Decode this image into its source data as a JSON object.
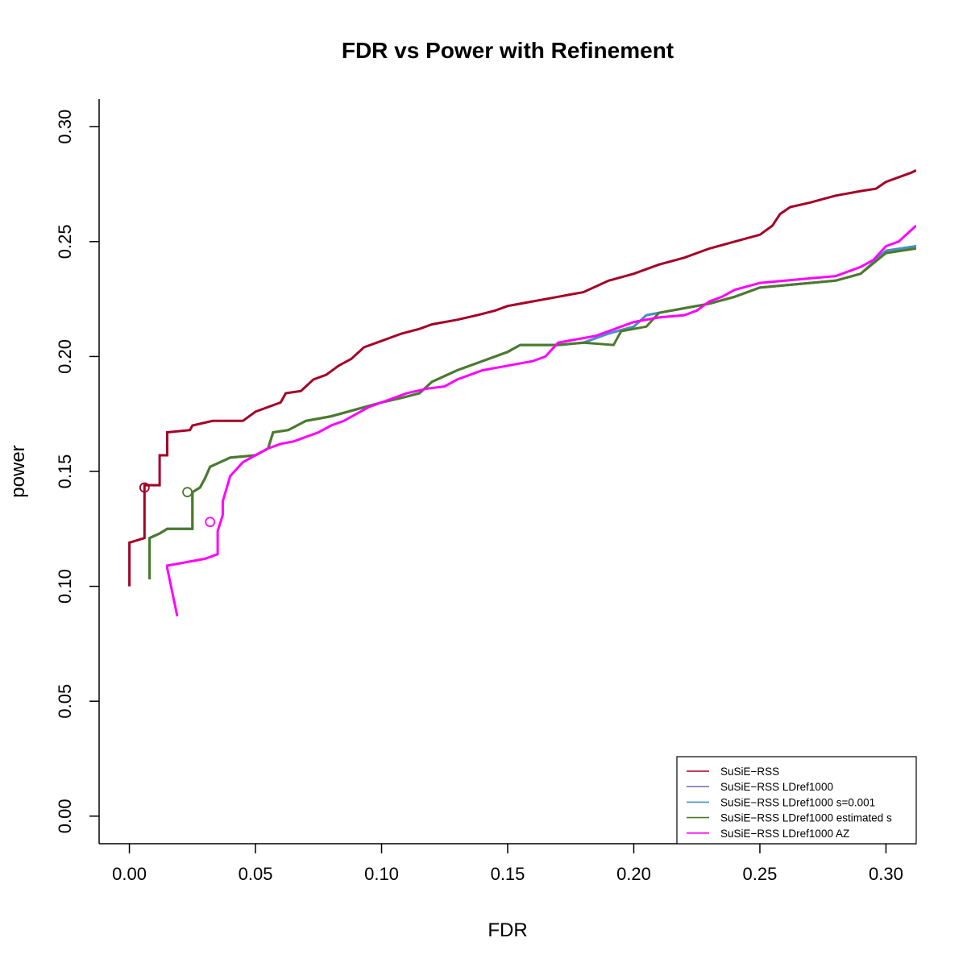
{
  "chart_data": {
    "type": "line",
    "title": "FDR vs Power with Refinement",
    "xlabel": "FDR",
    "ylabel": "power",
    "xlim": [
      -0.012,
      0.312
    ],
    "ylim": [
      -0.012,
      0.312
    ],
    "x_ticks": [
      0.0,
      0.05,
      0.1,
      0.15,
      0.2,
      0.25,
      0.3
    ],
    "x_tick_labels": [
      "0.00",
      "0.05",
      "0.10",
      "0.15",
      "0.20",
      "0.25",
      "0.30"
    ],
    "y_ticks": [
      0.0,
      0.05,
      0.1,
      0.15,
      0.2,
      0.25,
      0.3
    ],
    "y_tick_labels": [
      "0.00",
      "0.05",
      "0.10",
      "0.15",
      "0.20",
      "0.25",
      "0.30"
    ],
    "grid": false,
    "legend_position": "bottom-right",
    "series": [
      {
        "name": "SuSiE−RSS",
        "color": "#a50026",
        "x": [
          0.0,
          0.0,
          0.006,
          0.006,
          0.007,
          0.007,
          0.012,
          0.012,
          0.015,
          0.015,
          0.024,
          0.025,
          0.033,
          0.045,
          0.05,
          0.055,
          0.06,
          0.062,
          0.068,
          0.073,
          0.078,
          0.083,
          0.088,
          0.093,
          0.098,
          0.103,
          0.108,
          0.115,
          0.12,
          0.13,
          0.138,
          0.145,
          0.15,
          0.16,
          0.17,
          0.175,
          0.18,
          0.19,
          0.2,
          0.21,
          0.22,
          0.23,
          0.24,
          0.25,
          0.255,
          0.258,
          0.262,
          0.27,
          0.28,
          0.29,
          0.296,
          0.3,
          0.31,
          0.312
        ],
        "y": [
          0.1,
          0.119,
          0.121,
          0.144,
          0.144,
          0.144,
          0.144,
          0.157,
          0.157,
          0.167,
          0.168,
          0.17,
          0.172,
          0.172,
          0.176,
          0.178,
          0.18,
          0.184,
          0.185,
          0.19,
          0.192,
          0.196,
          0.199,
          0.204,
          0.206,
          0.208,
          0.21,
          0.212,
          0.214,
          0.216,
          0.218,
          0.22,
          0.222,
          0.224,
          0.226,
          0.227,
          0.228,
          0.233,
          0.236,
          0.24,
          0.243,
          0.247,
          0.25,
          0.253,
          0.257,
          0.262,
          0.265,
          0.267,
          0.27,
          0.272,
          0.273,
          0.276,
          0.28,
          0.281
        ]
      },
      {
        "name": "SuSiE−RSS LDref1000",
        "color": "#7e73ad",
        "x": [
          0.008,
          0.008,
          0.012,
          0.015,
          0.025,
          0.025,
          0.028,
          0.03,
          0.032,
          0.04,
          0.05,
          0.055,
          0.057,
          0.063,
          0.07,
          0.08,
          0.09,
          0.1,
          0.108,
          0.115,
          0.12,
          0.13,
          0.14,
          0.15,
          0.155,
          0.16,
          0.17,
          0.18,
          0.19,
          0.2,
          0.205,
          0.21,
          0.22,
          0.23,
          0.24,
          0.25,
          0.26,
          0.27,
          0.28,
          0.29,
          0.3,
          0.312
        ],
        "y": [
          0.103,
          0.121,
          0.123,
          0.125,
          0.125,
          0.141,
          0.143,
          0.147,
          0.152,
          0.156,
          0.157,
          0.16,
          0.167,
          0.168,
          0.172,
          0.174,
          0.177,
          0.18,
          0.182,
          0.184,
          0.189,
          0.194,
          0.198,
          0.202,
          0.205,
          0.205,
          0.205,
          0.206,
          0.21,
          0.213,
          0.218,
          0.219,
          0.221,
          0.223,
          0.226,
          0.23,
          0.231,
          0.232,
          0.233,
          0.236,
          0.246,
          0.248
        ]
      },
      {
        "name": "SuSiE−RSS LDref1000 s=0.001",
        "color": "#4393c3",
        "x": [
          0.008,
          0.008,
          0.012,
          0.015,
          0.025,
          0.025,
          0.028,
          0.03,
          0.032,
          0.04,
          0.05,
          0.055,
          0.057,
          0.063,
          0.07,
          0.08,
          0.09,
          0.1,
          0.108,
          0.115,
          0.12,
          0.13,
          0.14,
          0.15,
          0.155,
          0.16,
          0.17,
          0.18,
          0.19,
          0.2,
          0.205,
          0.21,
          0.22,
          0.23,
          0.24,
          0.25,
          0.26,
          0.27,
          0.28,
          0.29,
          0.3,
          0.312
        ],
        "y": [
          0.103,
          0.121,
          0.123,
          0.125,
          0.125,
          0.141,
          0.143,
          0.147,
          0.152,
          0.156,
          0.157,
          0.16,
          0.167,
          0.168,
          0.172,
          0.174,
          0.177,
          0.18,
          0.182,
          0.184,
          0.189,
          0.194,
          0.198,
          0.202,
          0.205,
          0.205,
          0.205,
          0.206,
          0.21,
          0.213,
          0.218,
          0.219,
          0.221,
          0.223,
          0.226,
          0.23,
          0.231,
          0.232,
          0.233,
          0.236,
          0.246,
          0.248
        ]
      },
      {
        "name": "SuSiE−RSS LDref1000 estimated s",
        "color": "#4d7a2a",
        "x": [
          0.008,
          0.008,
          0.012,
          0.015,
          0.025,
          0.025,
          0.028,
          0.03,
          0.032,
          0.04,
          0.05,
          0.055,
          0.057,
          0.063,
          0.07,
          0.08,
          0.09,
          0.1,
          0.108,
          0.115,
          0.12,
          0.13,
          0.14,
          0.15,
          0.155,
          0.16,
          0.17,
          0.18,
          0.192,
          0.195,
          0.205,
          0.21,
          0.22,
          0.23,
          0.24,
          0.25,
          0.26,
          0.27,
          0.28,
          0.29,
          0.3,
          0.312
        ],
        "y": [
          0.103,
          0.121,
          0.123,
          0.125,
          0.125,
          0.141,
          0.143,
          0.147,
          0.152,
          0.156,
          0.157,
          0.16,
          0.167,
          0.168,
          0.172,
          0.174,
          0.177,
          0.18,
          0.182,
          0.184,
          0.189,
          0.194,
          0.198,
          0.202,
          0.205,
          0.205,
          0.205,
          0.206,
          0.205,
          0.211,
          0.213,
          0.219,
          0.221,
          0.223,
          0.226,
          0.23,
          0.231,
          0.232,
          0.233,
          0.236,
          0.245,
          0.247
        ]
      },
      {
        "name": "SuSiE−RSS LDref1000 AZ",
        "color": "#ff00ff",
        "x": [
          0.019,
          0.015,
          0.015,
          0.02,
          0.03,
          0.035,
          0.035,
          0.037,
          0.037,
          0.04,
          0.045,
          0.05,
          0.055,
          0.06,
          0.065,
          0.07,
          0.075,
          0.08,
          0.085,
          0.09,
          0.095,
          0.1,
          0.105,
          0.11,
          0.118,
          0.125,
          0.13,
          0.135,
          0.14,
          0.15,
          0.16,
          0.165,
          0.17,
          0.175,
          0.18,
          0.185,
          0.19,
          0.2,
          0.21,
          0.22,
          0.225,
          0.23,
          0.235,
          0.24,
          0.25,
          0.26,
          0.27,
          0.28,
          0.29,
          0.295,
          0.3,
          0.305,
          0.312
        ],
        "y": [
          0.087,
          0.108,
          0.109,
          0.11,
          0.112,
          0.114,
          0.124,
          0.131,
          0.137,
          0.148,
          0.154,
          0.157,
          0.16,
          0.162,
          0.163,
          0.165,
          0.167,
          0.17,
          0.172,
          0.175,
          0.178,
          0.18,
          0.182,
          0.184,
          0.186,
          0.187,
          0.19,
          0.192,
          0.194,
          0.196,
          0.198,
          0.2,
          0.206,
          0.207,
          0.208,
          0.209,
          0.211,
          0.215,
          0.217,
          0.218,
          0.22,
          0.224,
          0.226,
          0.229,
          0.232,
          0.233,
          0.234,
          0.235,
          0.239,
          0.242,
          0.248,
          0.25,
          0.257
        ]
      }
    ],
    "markers": [
      {
        "series": "SuSiE−RSS",
        "x": 0.006,
        "y": 0.143,
        "color": "#a50026"
      },
      {
        "series": "SuSiE−RSS LDref1000 estimated s",
        "x": 0.023,
        "y": 0.141,
        "color": "#4d7a2a"
      },
      {
        "series": "SuSiE−RSS LDref1000 AZ",
        "x": 0.032,
        "y": 0.128,
        "color": "#ff00ff"
      }
    ]
  }
}
